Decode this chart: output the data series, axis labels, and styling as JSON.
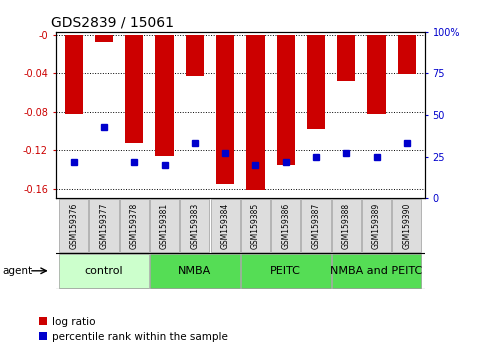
{
  "title": "GDS2839 / 15061",
  "samples": [
    "GSM159376",
    "GSM159377",
    "GSM159378",
    "GSM159381",
    "GSM159383",
    "GSM159384",
    "GSM159385",
    "GSM159386",
    "GSM159387",
    "GSM159388",
    "GSM159389",
    "GSM159390"
  ],
  "log_ratio": [
    -0.082,
    -0.008,
    -0.113,
    -0.126,
    -0.043,
    -0.155,
    -0.161,
    -0.135,
    -0.098,
    -0.048,
    -0.082,
    -0.041
  ],
  "percentile": [
    22,
    43,
    22,
    20,
    33,
    27,
    20,
    22,
    25,
    27,
    25,
    33
  ],
  "group_defs": [
    {
      "label": "control",
      "start": 0,
      "end": 2,
      "color": "#ccffcc"
    },
    {
      "label": "NMBA",
      "start": 3,
      "end": 5,
      "color": "#55dd55"
    },
    {
      "label": "PEITC",
      "start": 6,
      "end": 8,
      "color": "#55dd55"
    },
    {
      "label": "NMBA and PEITC",
      "start": 9,
      "end": 11,
      "color": "#55dd55"
    }
  ],
  "ylim_left": [
    -0.17,
    0.003
  ],
  "ylim_right": [
    0,
    100
  ],
  "yticks_left": [
    0,
    -0.04,
    -0.08,
    -0.12,
    -0.16
  ],
  "yticks_right": [
    0,
    25,
    50,
    75,
    100
  ],
  "bar_color": "#cc0000",
  "dot_color": "#0000cc",
  "bar_width": 0.6,
  "grid_color": "#000000",
  "tick_label_color_left": "#cc0000",
  "tick_label_color_right": "#0000cc",
  "legend_labels": [
    "log ratio",
    "percentile rank within the sample"
  ],
  "title_fontsize": 10,
  "tick_fontsize": 7,
  "group_label_fontsize": 8,
  "legend_fontsize": 7.5,
  "sample_label_fontsize": 5.5
}
